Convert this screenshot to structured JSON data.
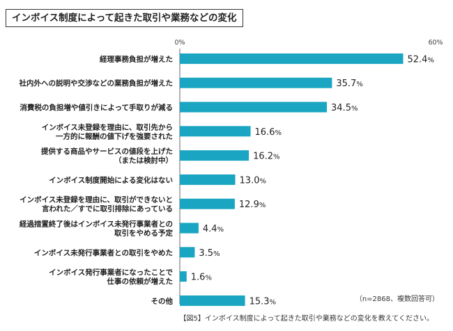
{
  "title": "インボイス制度によって起きた取引や業務などの変化",
  "note": "（n=2868、複数回答可）",
  "caption": "【図5】インボイス制度によって起きた取引や業務などの変化を教えてください。",
  "colors": {
    "bar": "#1aa5c2",
    "axis": "#666666"
  },
  "chart_data": {
    "type": "bar",
    "orientation": "horizontal",
    "xlim": [
      0,
      60
    ],
    "ticks": [
      "0%",
      "60%"
    ],
    "unit": "%",
    "categories": [
      [
        "経理事務負担が増えた"
      ],
      [
        "社内外への説明や交渉などの業務負担が増えた"
      ],
      [
        "消費税の負担増や値引きによって手取りが減る"
      ],
      [
        "インボイス未登録を理由に、取引先から",
        "一方的に報酬の値下げを強要された"
      ],
      [
        "提供する商品やサービスの値段を上げた",
        "（または検討中）"
      ],
      [
        "インボイス制度開始による変化はない"
      ],
      [
        "インボイス未登録を理由に、取引ができないと",
        "言われた／すでに取引排除にあっている"
      ],
      [
        "経過措置終了後はインボイス未発行事業者との",
        "取引をやめる予定"
      ],
      [
        "インボイス未発行事業者との取引をやめた"
      ],
      [
        "インボイス発行事業者になったことで",
        "仕事の依頼が増えた"
      ],
      [
        "その他"
      ]
    ],
    "values": [
      52.4,
      35.7,
      34.5,
      16.6,
      16.2,
      13.0,
      12.9,
      4.4,
      3.5,
      1.6,
      15.3
    ],
    "labels": [
      "52.4",
      "35.7",
      "34.5",
      "16.6",
      "16.2",
      "13.0",
      "12.9",
      "4.4",
      "3.5",
      "1.6",
      "15.3"
    ]
  }
}
